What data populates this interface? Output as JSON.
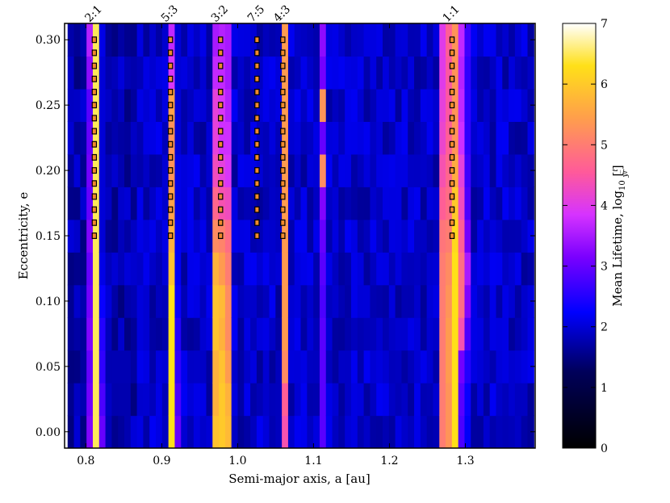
{
  "chart_data": {
    "type": "heatmap",
    "title": "",
    "xlabel": "Semi-major axis, a [au]",
    "ylabel": "Eccentricity, e",
    "xlim": [
      0.772,
      1.392
    ],
    "ylim": [
      -0.0125,
      0.3125
    ],
    "xticks": [
      0.8,
      0.9,
      1.0,
      1.1,
      1.2,
      1.3
    ],
    "yticks": [
      0.0,
      0.05,
      0.1,
      0.15,
      0.2,
      0.25,
      0.3
    ],
    "xtick_labels": [
      "0.8",
      "0.9",
      "1.0",
      "1.1",
      "1.2",
      "1.3"
    ],
    "ytick_labels": [
      "0.00",
      "0.05",
      "0.10",
      "0.15",
      "0.20",
      "0.25",
      "0.30"
    ],
    "colorbar": {
      "label": "Mean Lifetime, log10 [t/yr]",
      "label_prefix": "Mean Lifetime, log",
      "label_sub": "10",
      "label_frac_num": "t",
      "label_frac_den": "yr",
      "range": [
        0,
        7
      ],
      "ticks": [
        "0",
        "1",
        "2",
        "3",
        "4",
        "5",
        "6",
        "7"
      ],
      "colormap": "gnuplot2"
    },
    "grid": {
      "x_start": 0.776,
      "x_step": 0.0083,
      "n_cols": 74,
      "e_step": 0.025,
      "n_rows": 13
    },
    "background_log_lifetime": 1.9,
    "columns": [
      {
        "x": 0.8,
        "values": [
          3.2,
          3.1,
          3.0,
          3.2,
          3.1,
          3.0,
          3.2,
          3.0,
          3.1,
          3.0,
          2.9,
          3.3,
          3.6
        ]
      },
      {
        "x": 0.81,
        "values": [
          6.5,
          6.5,
          6.5,
          6.5,
          6.5,
          6.5,
          6.5,
          6.5,
          6.5,
          6.5,
          6.5,
          6.5,
          6.5
        ]
      },
      {
        "x": 0.817,
        "values": [
          3.0,
          2.8,
          2.6,
          2.5,
          2.3,
          2.1,
          2.0,
          2.0,
          2.0,
          2.0,
          2.0,
          2.0,
          2.1
        ]
      },
      {
        "x": 0.911,
        "values": [
          6.3,
          6.3,
          6.3,
          6.3,
          6.3,
          5.9,
          5.7,
          5.5,
          5.3,
          5.3,
          5.5,
          3.9,
          3.7
        ]
      },
      {
        "x": 0.919,
        "values": [
          3.0,
          2.8,
          2.6,
          2.5,
          2.3,
          2.2,
          2.2,
          2.1,
          2.1,
          2.0,
          2.0,
          2.0,
          2.0
        ]
      },
      {
        "x": 0.969,
        "values": [
          5.9,
          5.7,
          5.7,
          5.9,
          5.9,
          5.7,
          5.2,
          4.7,
          4.3,
          4.1,
          4.1,
          3.7,
          3.5
        ]
      },
      {
        "x": 0.977,
        "values": [
          6.0,
          6.0,
          5.9,
          5.7,
          5.8,
          5.4,
          5.1,
          4.4,
          4.1,
          3.8,
          3.9,
          3.7,
          3.6
        ]
      },
      {
        "x": 0.986,
        "values": [
          5.8,
          5.7,
          5.4,
          5.2,
          5.2,
          5.0,
          4.8,
          4.3,
          3.9,
          3.8,
          3.6,
          3.5,
          3.5
        ]
      },
      {
        "x": 1.059,
        "values": [
          4.4,
          4.6,
          5.2,
          5.4,
          5.4,
          5.4,
          5.4,
          5.4,
          5.4,
          5.4,
          5.4,
          5.4,
          5.4
        ]
      },
      {
        "x": 1.109,
        "values": [
          2.9,
          2.9,
          2.9,
          2.9,
          2.8,
          2.9,
          3.0,
          3.2,
          5.2,
          3.0,
          5.3,
          3.1,
          3.3
        ]
      },
      {
        "x": 1.268,
        "values": [
          5.0,
          5.0,
          5.0,
          5.0,
          5.0,
          5.0,
          4.9,
          4.6,
          4.4,
          4.2,
          4.1,
          4.0,
          4.0
        ]
      },
      {
        "x": 1.276,
        "values": [
          5.3,
          5.3,
          5.4,
          5.4,
          5.3,
          5.2,
          5.0,
          4.8,
          4.7,
          4.6,
          4.5,
          4.5,
          4.6
        ]
      },
      {
        "x": 1.284,
        "values": [
          6.3,
          6.3,
          6.3,
          6.3,
          6.3,
          6.3,
          6.2,
          6.0,
          5.6,
          5.3,
          5.3,
          5.3,
          5.3
        ]
      },
      {
        "x": 1.292,
        "values": [
          2.8,
          2.9,
          3.1,
          4.4,
          4.8,
          4.8,
          4.6,
          4.3,
          4.1,
          3.8,
          3.7,
          3.6,
          3.7
        ]
      },
      {
        "x": 1.301,
        "values": [
          2.2,
          2.3,
          2.5,
          2.8,
          3.2,
          3.5,
          3.1,
          2.8,
          2.7,
          2.6,
          2.6,
          2.6,
          2.7
        ]
      }
    ],
    "resonances": [
      {
        "label": "2:1",
        "a": 0.8112,
        "e_max": 0.3
      },
      {
        "label": "5:3",
        "a": 0.9115,
        "e_max": 0.3
      },
      {
        "label": "3:2",
        "a": 0.9775,
        "e_max": 0.3
      },
      {
        "label": "7:5",
        "a": 1.0255,
        "e_max": 0.3
      },
      {
        "label": "4:3",
        "a": 1.0595,
        "e_max": 0.3
      },
      {
        "label": "1:1",
        "a": 1.2825,
        "e_max": 0.3
      }
    ],
    "resonance_marker_e_min": 0.15
  }
}
